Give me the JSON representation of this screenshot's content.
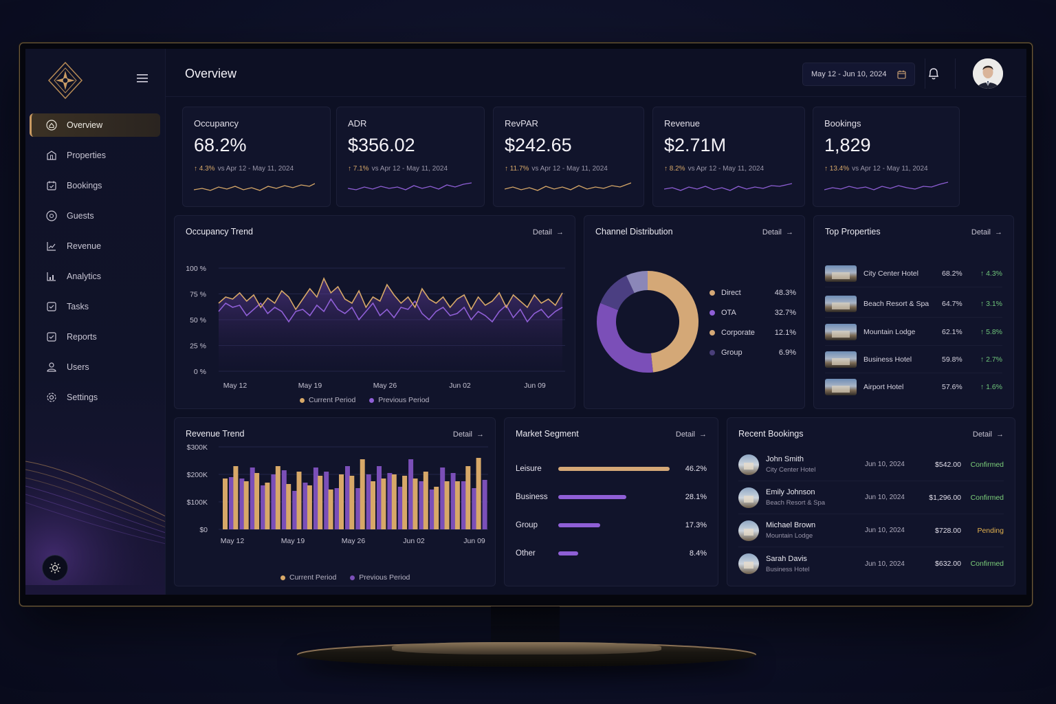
{
  "header": {
    "title": "Overview",
    "date_range": "May 12 - Jun 10, 2024"
  },
  "sidebar": {
    "items": [
      {
        "label": "Overview",
        "icon": "home-icon",
        "active": true
      },
      {
        "label": "Properties",
        "icon": "building-icon"
      },
      {
        "label": "Bookings",
        "icon": "calendar-check-icon"
      },
      {
        "label": "Guests",
        "icon": "guest-icon"
      },
      {
        "label": "Revenue",
        "icon": "revenue-chart-icon"
      },
      {
        "label": "Analytics",
        "icon": "analytics-icon"
      },
      {
        "label": "Tasks",
        "icon": "tasks-icon"
      },
      {
        "label": "Reports",
        "icon": "reports-icon"
      },
      {
        "label": "Users",
        "icon": "user-icon"
      },
      {
        "label": "Settings",
        "icon": "gear-icon"
      }
    ]
  },
  "kpis": [
    {
      "label": "Occupancy",
      "value": "68.2%",
      "change": "4.3%",
      "compare": "vs Apr 12 - May 11, 2024",
      "color": "#d7a868"
    },
    {
      "label": "ADR",
      "value": "$356.02",
      "change": "7.1%",
      "compare": "vs Apr 12 - May 11, 2024",
      "color": "#8f5fd6"
    },
    {
      "label": "RevPAR",
      "value": "$242.65",
      "change": "11.7%",
      "compare": "vs Apr 12 - May 11, 2024",
      "color": "#d7a868"
    },
    {
      "label": "Revenue",
      "value": "$2.71M",
      "change": "8.2%",
      "compare": "vs Apr 12 - May 11, 2024",
      "color": "#8f5fd6"
    },
    {
      "label": "Bookings",
      "value": "1,829",
      "change": "13.4%",
      "compare": "vs Apr 12 - May 11, 2024",
      "color": "#8f5fd6"
    }
  ],
  "common": {
    "detail": "Detail"
  },
  "occupancy_trend": {
    "title": "Occupancy Trend",
    "legend_current": "Current Period",
    "legend_previous": "Previous Period"
  },
  "channel": {
    "title": "Channel Distribution",
    "items": [
      {
        "name": "Direct",
        "value": "48.3%",
        "color": "#d4a877"
      },
      {
        "name": "OTA",
        "value": "32.7%",
        "color": "#7b4fb8"
      },
      {
        "name": "Corporate",
        "value": "12.1%",
        "color": "#d4a877"
      },
      {
        "name": "Group",
        "value": "6.9%",
        "color": "#4a3f7a"
      }
    ]
  },
  "top_properties": {
    "title": "Top Properties",
    "rows": [
      {
        "name": "City Center Hotel",
        "occ": "68.2%",
        "chg": "4.3%"
      },
      {
        "name": "Beach Resort & Spa",
        "occ": "64.7%",
        "chg": "3.1%"
      },
      {
        "name": "Mountain Lodge",
        "occ": "62.1%",
        "chg": "5.8%"
      },
      {
        "name": "Business Hotel",
        "occ": "59.8%",
        "chg": "2.7%"
      },
      {
        "name": "Airport Hotel",
        "occ": "57.6%",
        "chg": "1.6%"
      }
    ]
  },
  "revenue_trend": {
    "title": "Revenue Trend",
    "legend_current": "Current Period",
    "legend_previous": "Previous Period"
  },
  "market": {
    "title": "Market Segment",
    "rows": [
      {
        "name": "Leisure",
        "value": "46.2%",
        "pct": 46.2,
        "color": "#d4a877"
      },
      {
        "name": "Business",
        "value": "28.1%",
        "pct": 28.1,
        "color": "#8f5fd6"
      },
      {
        "name": "Group",
        "value": "17.3%",
        "pct": 17.3,
        "color": "#8f5fd6"
      },
      {
        "name": "Other",
        "value": "8.4%",
        "pct": 8.4,
        "color": "#8f5fd6"
      }
    ]
  },
  "bookings": {
    "title": "Recent Bookings",
    "rows": [
      {
        "name": "John Smith",
        "property": "City Center Hotel",
        "date": "Jun 10, 2024",
        "amount": "$542.00",
        "status": "Confirmed",
        "status_color": "#7ccf7a"
      },
      {
        "name": "Emily Johnson",
        "property": "Beach Resort & Spa",
        "date": "Jun 10, 2024",
        "amount": "$1,296.00",
        "status": "Confirmed",
        "status_color": "#7ccf7a"
      },
      {
        "name": "Michael Brown",
        "property": "Mountain Lodge",
        "date": "Jun 10, 2024",
        "amount": "$728.00",
        "status": "Pending",
        "status_color": "#e2b14f"
      },
      {
        "name": "Sarah Davis",
        "property": "Business Hotel",
        "date": "Jun 10, 2024",
        "amount": "$632.00",
        "status": "Confirmed",
        "status_color": "#7ccf7a"
      }
    ]
  },
  "chart_data": [
    {
      "type": "line",
      "title": "Occupancy Trend",
      "y_ticks": [
        "100 %",
        "75 %",
        "50 %",
        "25 %",
        "0 %"
      ],
      "x_ticks": [
        "May 12",
        "May 19",
        "May 26",
        "Jun 02",
        "Jun 09"
      ],
      "ylim": [
        0,
        100
      ],
      "series": [
        {
          "name": "Current Period",
          "color": "#d7a868",
          "values": [
            66,
            72,
            70,
            76,
            68,
            74,
            62,
            71,
            66,
            78,
            72,
            60,
            70,
            80,
            72,
            90,
            76,
            82,
            70,
            66,
            78,
            62,
            72,
            68,
            84,
            74,
            66,
            72,
            62,
            80,
            70,
            66,
            72,
            62,
            70,
            74,
            60,
            72,
            64,
            68,
            76,
            62,
            74,
            68,
            62,
            74,
            66,
            70,
            64,
            76
          ]
        },
        {
          "name": "Previous Period",
          "color": "#8f5fd6",
          "values": [
            58,
            66,
            62,
            64,
            54,
            60,
            66,
            56,
            62,
            58,
            48,
            58,
            60,
            54,
            64,
            58,
            70,
            60,
            56,
            62,
            50,
            58,
            66,
            54,
            60,
            52,
            62,
            60,
            68,
            56,
            50,
            58,
            62,
            54,
            56,
            62,
            50,
            58,
            54,
            48,
            58,
            64,
            52,
            60,
            48,
            56,
            60,
            52,
            58,
            62
          ]
        }
      ],
      "legend": "bottom"
    },
    {
      "type": "pie",
      "title": "Channel Distribution",
      "categories": [
        "Direct",
        "OTA",
        "Corporate",
        "Group"
      ],
      "values": [
        48.3,
        32.7,
        12.1,
        6.9
      ]
    },
    {
      "type": "bar",
      "title": "Revenue Trend",
      "y_ticks": [
        "$300K",
        "$200K",
        "$100K",
        "$0"
      ],
      "x_ticks": [
        "May 12",
        "May 19",
        "May 26",
        "Jun 02",
        "Jun 09"
      ],
      "ylim": [
        0,
        300
      ],
      "series": [
        {
          "name": "Current Period",
          "color": "#d7a868",
          "values": [
            185,
            230,
            175,
            205,
            170,
            230,
            165,
            210,
            160,
            195,
            145,
            200,
            195,
            255,
            175,
            185,
            200,
            195,
            185,
            210,
            155,
            175,
            175,
            230,
            260
          ]
        },
        {
          "name": "Previous Period",
          "color": "#7b4fb8",
          "values": [
            190,
            185,
            225,
            160,
            200,
            215,
            140,
            170,
            225,
            210,
            150,
            230,
            150,
            200,
            230,
            205,
            155,
            255,
            175,
            145,
            225,
            205,
            175,
            150,
            180
          ]
        }
      ],
      "legend": "bottom"
    }
  ]
}
